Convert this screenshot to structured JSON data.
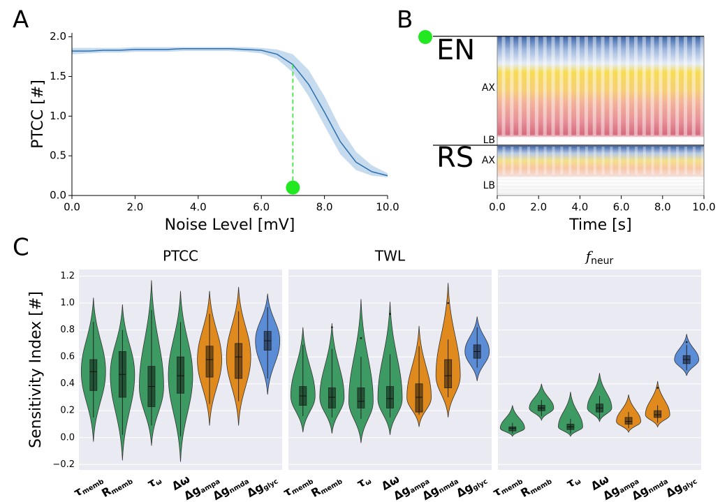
{
  "chart_data": [
    {
      "type": "line",
      "panel": "A",
      "xlabel": "Noise Level [mV]",
      "ylabel": "PTCC [#]",
      "x": [
        0,
        0.5,
        1,
        1.5,
        2,
        2.5,
        3,
        3.5,
        4,
        4.5,
        5,
        5.5,
        6,
        6.5,
        7,
        7.5,
        8,
        8.5,
        9,
        9.5,
        10
      ],
      "values": [
        1.82,
        1.82,
        1.83,
        1.83,
        1.84,
        1.84,
        1.84,
        1.85,
        1.85,
        1.85,
        1.85,
        1.84,
        1.83,
        1.78,
        1.65,
        1.4,
        1.05,
        0.68,
        0.42,
        0.3,
        0.25
      ],
      "lower": [
        1.78,
        1.79,
        1.8,
        1.8,
        1.81,
        1.81,
        1.81,
        1.82,
        1.82,
        1.82,
        1.82,
        1.81,
        1.79,
        1.72,
        1.55,
        1.25,
        0.88,
        0.52,
        0.32,
        0.25,
        0.23
      ],
      "upper": [
        1.86,
        1.86,
        1.86,
        1.86,
        1.87,
        1.87,
        1.87,
        1.87,
        1.87,
        1.87,
        1.87,
        1.87,
        1.86,
        1.84,
        1.78,
        1.58,
        1.25,
        0.85,
        0.55,
        0.38,
        0.28
      ],
      "color": "#2b6fae",
      "band_color": "#c7dbef",
      "xlim": [
        0,
        10
      ],
      "ylim": [
        0,
        2.05
      ],
      "xticks": [
        {
          "value": 0,
          "label": "0.0"
        },
        {
          "value": 2,
          "label": "2.0"
        },
        {
          "value": 4,
          "label": "4.0"
        },
        {
          "value": 6,
          "label": "6.0"
        },
        {
          "value": 8,
          "label": "8.0"
        },
        {
          "value": 10,
          "label": "10.0"
        }
      ],
      "yticks": [
        {
          "value": 0,
          "label": "0.0"
        },
        0.5,
        {
          "value": 1,
          "label": "1.0"
        },
        1.5,
        {
          "value": 2,
          "label": "2.0"
        }
      ],
      "annotation": {
        "x": 7,
        "y": 0.1,
        "line_top": 1.65,
        "color": "#22e822"
      }
    },
    {
      "type": "raster",
      "panel": "B",
      "xlabel": "Time [s]",
      "xlim": [
        0,
        10
      ],
      "xticks": [
        {
          "value": 0,
          "label": "0.0"
        },
        {
          "value": 2,
          "label": "2.0"
        },
        {
          "value": 4,
          "label": "4.0"
        },
        {
          "value": 6,
          "label": "6.0"
        },
        {
          "value": 8,
          "label": "8.0"
        },
        {
          "value": 10,
          "label": "10.0"
        }
      ],
      "groups": [
        {
          "name": "EN",
          "labels": [
            "AX",
            "LB"
          ]
        },
        {
          "name": "RS",
          "labels": [
            "AX",
            "LB"
          ]
        }
      ]
    },
    {
      "type": "violin",
      "panel": "C",
      "title": "PTCC",
      "ylabel": "Sensitivity Index [#]",
      "ylim": [
        -0.24,
        1.25
      ],
      "yticks": [
        {
          "value": -0.2,
          "label": "−0.2"
        },
        {
          "value": 0,
          "label": "0.0"
        },
        0.2,
        0.4,
        0.6,
        0.8,
        {
          "value": 1,
          "label": "1.0"
        },
        1.2
      ],
      "categories": [
        {
          "symbol": "τ",
          "subscript": "memb"
        },
        {
          "symbol": "R",
          "subscript": "memb"
        },
        {
          "symbol": "τ",
          "subscript": "ω"
        },
        {
          "symbol": "Δω",
          "subscript": null
        },
        {
          "symbol": "Δg",
          "subscript": "ampa"
        },
        {
          "symbol": "Δg",
          "subscript": "nmda"
        },
        {
          "symbol": "Δg",
          "subscript": "glyc"
        }
      ],
      "colors": [
        "#3d9a62",
        "#3d9a62",
        "#3d9a62",
        "#3d9a62",
        "#e08a1e",
        "#e08a1e",
        "#5b8dd6"
      ],
      "violins": [
        {
          "range": [
            -0.03,
            1.04
          ],
          "whiskers": [
            0.15,
            0.86
          ],
          "box": [
            0.35,
            0.58
          ],
          "median": 0.49,
          "outliers": []
        },
        {
          "range": [
            -0.17,
            0.99
          ],
          "whiskers": [
            0.02,
            0.8
          ],
          "box": [
            0.3,
            0.64
          ],
          "median": 0.47,
          "outliers": []
        },
        {
          "range": [
            -0.06,
            1.17
          ],
          "whiskers": [
            0.09,
            0.95
          ],
          "box": [
            0.23,
            0.53
          ],
          "median": 0.38,
          "outliers": []
        },
        {
          "range": [
            -0.18,
            1.09
          ],
          "whiskers": [
            0.01,
            0.86
          ],
          "box": [
            0.33,
            0.6
          ],
          "median": 0.46,
          "outliers": []
        },
        {
          "range": [
            0.09,
            1.09
          ],
          "whiskers": [
            0.25,
            0.92
          ],
          "box": [
            0.45,
            0.68
          ],
          "median": 0.58,
          "outliers": []
        },
        {
          "range": [
            0.09,
            1.12
          ],
          "whiskers": [
            0.27,
            0.94
          ],
          "box": [
            0.44,
            0.7
          ],
          "median": 0.6,
          "outliers": []
        },
        {
          "range": [
            0.32,
            1.07
          ],
          "whiskers": [
            0.44,
            0.97
          ],
          "box": [
            0.65,
            0.79
          ],
          "median": 0.72,
          "outliers": []
        }
      ]
    },
    {
      "type": "violin",
      "title": "TWL",
      "categories": [
        {
          "symbol": "τ",
          "subscript": "memb"
        },
        {
          "symbol": "R",
          "subscript": "memb"
        },
        {
          "symbol": "τ",
          "subscript": "ω"
        },
        {
          "symbol": "Δω",
          "subscript": null
        },
        {
          "symbol": "Δg",
          "subscript": "ampa"
        },
        {
          "symbol": "Δg",
          "subscript": "nmda"
        },
        {
          "symbol": "Δg",
          "subscript": "glyc"
        }
      ],
      "colors": [
        "#3d9a62",
        "#3d9a62",
        "#3d9a62",
        "#3d9a62",
        "#e08a1e",
        "#e08a1e",
        "#5b8dd6"
      ],
      "violins": [
        {
          "range": [
            0.04,
            0.82
          ],
          "whiskers": [
            0.16,
            0.69
          ],
          "box": [
            0.24,
            0.38
          ],
          "median": 0.31,
          "outliers": []
        },
        {
          "range": [
            0.03,
            0.85
          ],
          "whiskers": [
            0.15,
            0.66
          ],
          "box": [
            0.22,
            0.37
          ],
          "median": 0.3,
          "outliers": [
            0.82
          ]
        },
        {
          "range": [
            -0.04,
            1.03
          ],
          "whiskers": [
            0.14,
            0.6
          ],
          "box": [
            0.22,
            0.37
          ],
          "median": 0.27,
          "outliers": [
            0.74
          ]
        },
        {
          "range": [
            0.02,
            1.01
          ],
          "whiskers": [
            0.15,
            0.62
          ],
          "box": [
            0.22,
            0.38
          ],
          "median": 0.29,
          "outliers": [
            0.92
          ]
        },
        {
          "range": [
            0.08,
            0.83
          ],
          "whiskers": [
            0.17,
            0.68
          ],
          "box": [
            0.19,
            0.4
          ],
          "median": 0.3,
          "outliers": []
        },
        {
          "range": [
            0.15,
            1.15
          ],
          "whiskers": [
            0.3,
            0.73
          ],
          "box": [
            0.37,
            0.58
          ],
          "median": 0.46,
          "outliers": [
            1.0
          ]
        },
        {
          "range": [
            0.42,
            0.9
          ],
          "whiskers": [
            0.52,
            0.82
          ],
          "box": [
            0.59,
            0.69
          ],
          "median": 0.64,
          "outliers": []
        }
      ]
    },
    {
      "type": "violin",
      "title": {
        "symbol": "f",
        "subscript": "neur"
      },
      "categories": [
        {
          "symbol": "τ",
          "subscript": "memb"
        },
        {
          "symbol": "R",
          "subscript": "memb"
        },
        {
          "symbol": "τ",
          "subscript": "ω"
        },
        {
          "symbol": "Δω",
          "subscript": null
        },
        {
          "symbol": "Δg",
          "subscript": "ampa"
        },
        {
          "symbol": "Δg",
          "subscript": "nmda"
        },
        {
          "symbol": "Δg",
          "subscript": "glyc"
        }
      ],
      "colors": [
        "#3d9a62",
        "#3d9a62",
        "#3d9a62",
        "#3d9a62",
        "#e08a1e",
        "#e08a1e",
        "#5b8dd6"
      ],
      "violins": [
        {
          "range": [
            0.01,
            0.24
          ],
          "whiskers": [
            0.03,
            0.11
          ],
          "box": [
            0.05,
            0.08
          ],
          "median": 0.07,
          "outliers": []
        },
        {
          "range": [
            0.13,
            0.4
          ],
          "whiskers": [
            0.16,
            0.28
          ],
          "box": [
            0.2,
            0.24
          ],
          "median": 0.22,
          "outliers": []
        },
        {
          "range": [
            0.01,
            0.34
          ],
          "whiskers": [
            0.03,
            0.14
          ],
          "box": [
            0.06,
            0.1
          ],
          "median": 0.08,
          "outliers": []
        },
        {
          "range": [
            0.12,
            0.48
          ],
          "whiskers": [
            0.14,
            0.31
          ],
          "box": [
            0.19,
            0.25
          ],
          "median": 0.22,
          "outliers": []
        },
        {
          "range": [
            0.04,
            0.32
          ],
          "whiskers": [
            0.07,
            0.19
          ],
          "box": [
            0.1,
            0.15
          ],
          "median": 0.12,
          "outliers": []
        },
        {
          "range": [
            0.08,
            0.42
          ],
          "whiskers": [
            0.11,
            0.24
          ],
          "box": [
            0.15,
            0.2
          ],
          "median": 0.17,
          "outliers": [
            0.37
          ]
        },
        {
          "range": [
            0.46,
            0.77
          ],
          "whiskers": [
            0.5,
            0.69
          ],
          "box": [
            0.55,
            0.61
          ],
          "median": 0.58,
          "outliers": [
            0.71
          ]
        }
      ]
    }
  ]
}
